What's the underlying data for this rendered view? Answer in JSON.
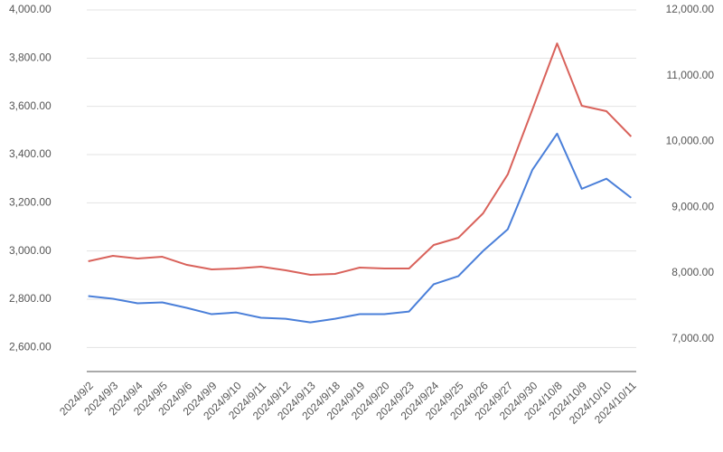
{
  "chart_data": {
    "type": "line",
    "categories": [
      "2024/9/2",
      "2024/9/3",
      "2024/9/4",
      "2024/9/5",
      "2024/9/6",
      "2024/9/9",
      "2024/9/10",
      "2024/9/11",
      "2024/9/12",
      "2024/9/13",
      "2024/9/18",
      "2024/9/19",
      "2024/9/20",
      "2024/9/23",
      "2024/9/24",
      "2024/9/25",
      "2024/9/26",
      "2024/9/27",
      "2024/9/30",
      "2024/10/8",
      "2024/10/9",
      "2024/10/10",
      "2024/10/11"
    ],
    "series": [
      {
        "color": "#4a7fd9",
        "values": [
          2813,
          2802,
          2783,
          2787,
          2764,
          2738,
          2745,
          2723,
          2719,
          2704,
          2719,
          2738,
          2738,
          2749,
          2862,
          2896,
          3000,
          3090,
          3337,
          3487,
          3258,
          3300,
          3221
        ]
      },
      {
        "color": "#d9625b",
        "axis": "y2",
        "values": [
          8177,
          8260,
          8219,
          8246,
          8122,
          8054,
          8068,
          8095,
          8040,
          7971,
          7985,
          8081,
          8068,
          8068,
          8425,
          8535,
          8906,
          9498,
          10488,
          11491,
          10543,
          10460,
          10075
        ]
      }
    ],
    "ylim": [
      2500,
      4000
    ],
    "yticks": [
      {
        "value": 2600,
        "label": "2,600.00"
      },
      {
        "value": 2800,
        "label": "2,800.00"
      },
      {
        "value": 3000,
        "label": "3,000.00"
      },
      {
        "value": 3200,
        "label": "3,200.00"
      },
      {
        "value": 3400,
        "label": "3,400.00"
      },
      {
        "value": 3600,
        "label": "3,600.00"
      },
      {
        "value": 3800,
        "label": "3,800.00"
      },
      {
        "value": 4000,
        "label": "4,000.00"
      }
    ],
    "y2lim": [
      6500,
      12000
    ],
    "y2ticks": [
      {
        "value": 7000,
        "label": "7,000.00"
      },
      {
        "value": 8000,
        "label": "8,000.00"
      },
      {
        "value": 9000,
        "label": "9,000.00"
      },
      {
        "value": 10000,
        "label": "10,000.00"
      },
      {
        "value": 11000,
        "label": "11,000.00"
      },
      {
        "value": 12000,
        "label": "12,000.00"
      }
    ],
    "grid": true
  }
}
